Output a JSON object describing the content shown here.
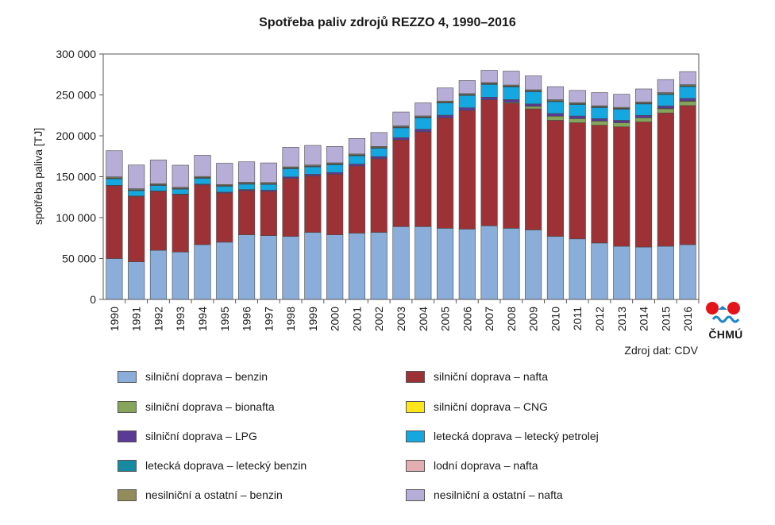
{
  "chart_data": {
    "type": "bar",
    "stacked": true,
    "title": "Spotřeba paliv zdrojů REZZO 4, 1990–2016",
    "ylabel": "spotřeba paliva [TJ]",
    "xlabel": "",
    "ylim": [
      0,
      300000
    ],
    "yticks": [
      0,
      50000,
      100000,
      150000,
      200000,
      250000,
      300000
    ],
    "ytick_labels": [
      "0",
      "50 000",
      "100 000",
      "150 000",
      "200 000",
      "250 000",
      "300 000"
    ],
    "grid": false,
    "legend_placement": "bottom",
    "categories": [
      "1990",
      "1991",
      "1992",
      "1993",
      "1994",
      "1995",
      "1996",
      "1997",
      "1998",
      "1999",
      "2000",
      "2001",
      "2002",
      "2003",
      "2004",
      "2005",
      "2006",
      "2007",
      "2008",
      "2009",
      "2010",
      "2011",
      "2012",
      "2013",
      "2014",
      "2015",
      "2016"
    ],
    "series": [
      {
        "name": "silniční doprava – benzin",
        "color": "#8aaed9",
        "values": [
          50000,
          46000,
          60000,
          58000,
          67000,
          70000,
          79000,
          78000,
          77000,
          82000,
          79000,
          81000,
          82000,
          89000,
          89000,
          87000,
          86000,
          90000,
          87000,
          85000,
          77000,
          74000,
          69000,
          65000,
          64000,
          65000,
          67000
        ]
      },
      {
        "name": "silniční doprava – nafta",
        "color": "#9c3236",
        "values": [
          89000,
          80000,
          72000,
          70000,
          73000,
          60000,
          54000,
          54000,
          71000,
          69000,
          74000,
          82000,
          90000,
          106000,
          116000,
          135000,
          145000,
          154000,
          153000,
          148000,
          142000,
          142000,
          144000,
          146000,
          153000,
          163000,
          170000
        ]
      },
      {
        "name": "silniční doprava – bionafta",
        "color": "#86a45a",
        "values": [
          0,
          0,
          0,
          0,
          0,
          0,
          0,
          0,
          0,
          0,
          0,
          0,
          0,
          0,
          0,
          0,
          0,
          0,
          1000,
          3000,
          5000,
          5000,
          5000,
          5000,
          5000,
          5000,
          5000
        ]
      },
      {
        "name": "silniční doprava – CNG",
        "color": "#ffe61a",
        "values": [
          0,
          0,
          0,
          0,
          0,
          0,
          0,
          0,
          0,
          0,
          0,
          0,
          0,
          0,
          0,
          0,
          0,
          0,
          0,
          0,
          0,
          0,
          0,
          0,
          0,
          500,
          700
        ]
      },
      {
        "name": "silniční doprava – LPG",
        "color": "#5a3a95",
        "values": [
          500,
          500,
          700,
          800,
          1000,
          1200,
          1400,
          1600,
          1800,
          2000,
          2200,
          2500,
          2700,
          2800,
          3000,
          3200,
          3300,
          3300,
          3300,
          3000,
          3300,
          3200,
          3000,
          3000,
          3000,
          3000,
          3000
        ]
      },
      {
        "name": "letecká doprava – letecký petrolej",
        "color": "#15a7e0",
        "values": [
          8000,
          6500,
          6500,
          6000,
          7000,
          7000,
          6500,
          7000,
          10000,
          9000,
          9500,
          10000,
          10000,
          12000,
          14000,
          15000,
          15000,
          15500,
          15500,
          15000,
          14500,
          14000,
          13500,
          13500,
          14000,
          14000,
          14500
        ]
      },
      {
        "name": "letecká doprava – letecký benzin",
        "color": "#168aa0",
        "values": [
          800,
          800,
          800,
          800,
          800,
          800,
          800,
          800,
          800,
          800,
          800,
          800,
          800,
          800,
          800,
          800,
          800,
          800,
          800,
          800,
          800,
          800,
          800,
          800,
          800,
          800,
          800
        ]
      },
      {
        "name": "lodní doprava – nafta",
        "color": "#e3aeb1",
        "values": [
          300,
          300,
          300,
          300,
          300,
          300,
          300,
          300,
          300,
          300,
          300,
          300,
          300,
          300,
          300,
          300,
          300,
          300,
          300,
          300,
          300,
          300,
          300,
          300,
          300,
          300,
          300
        ]
      },
      {
        "name": "nesilniční a ostatní – benzin",
        "color": "#928b5a",
        "values": [
          1200,
          1200,
          1200,
          1200,
          1200,
          1200,
          1200,
          1200,
          1200,
          1200,
          1200,
          1200,
          1200,
          1200,
          1200,
          1200,
          1200,
          1200,
          1200,
          1200,
          1200,
          1200,
          1200,
          1200,
          1200,
          1200,
          1200
        ]
      },
      {
        "name": "nesilniční a ostatní – nafta",
        "color": "#b6aed6",
        "values": [
          32000,
          29000,
          29000,
          27000,
          26000,
          26000,
          25000,
          24000,
          24000,
          24000,
          20000,
          19000,
          17000,
          17000,
          16000,
          16000,
          16000,
          15000,
          17000,
          17000,
          16000,
          15000,
          16000,
          16000,
          16000,
          16000,
          16000
        ]
      }
    ]
  },
  "source": "Zdroj dat: CDV",
  "logo": {
    "text": "ČHMÚ",
    "color_red": "#e3141a",
    "color_blue": "#1c86c9"
  }
}
